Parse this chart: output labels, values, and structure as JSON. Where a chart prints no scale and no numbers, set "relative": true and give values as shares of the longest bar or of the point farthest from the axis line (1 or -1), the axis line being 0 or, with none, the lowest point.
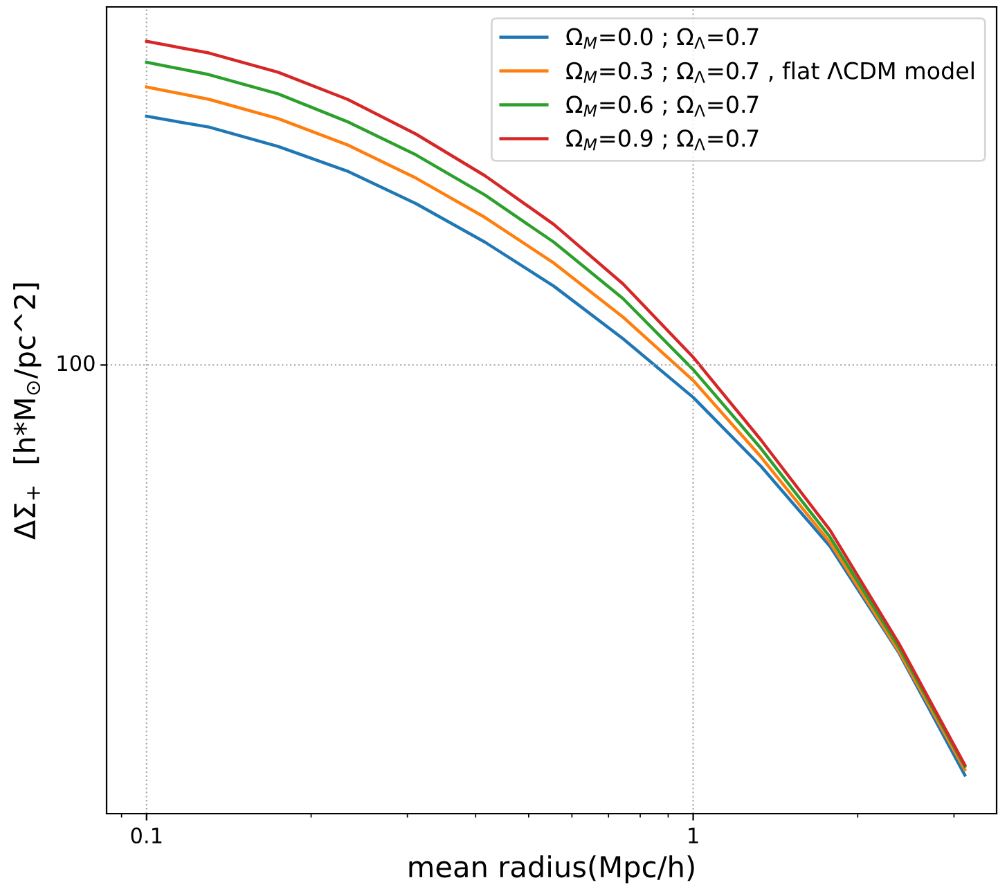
{
  "chart_data": {
    "type": "line",
    "xlabel": "mean radius(Mpc/h)",
    "ylabel": "ΔΣ$_{+}$  [h*M$_{⊙}$/pc^2]",
    "log": "x",
    "relative": true,
    "grid": "x",
    "legend": "top right",
    "marker": "none",
    "line_style": "solid",
    "tick_labels": "x",
    "xlim": [
      0.0845,
      3.59
    ],
    "xticks": [
      {
        "value": 0.09,
        "label": null
      },
      0.1,
      {
        "value": 0.2,
        "label": null
      },
      {
        "value": 0.3,
        "label": null
      },
      {
        "value": 0.4,
        "label": null
      },
      {
        "value": 0.5,
        "label": null
      },
      {
        "value": 0.6,
        "label": null
      },
      {
        "value": 0.7,
        "label": null
      },
      {
        "value": 0.8,
        "label": null
      },
      {
        "value": 0.9,
        "label": null
      },
      1,
      {
        "value": 2,
        "label": null
      },
      {
        "value": 3,
        "label": null
      }
    ],
    "ref_lines": [
      {
        "axis": "y",
        "value": 0.581,
        "color": "#aaaaaa",
        "line_style": "dotted"
      }
    ],
    "annotations": [
      "100"
    ],
    "x": [
      0.1,
      0.13,
      0.174,
      0.233,
      0.311,
      0.416,
      0.556,
      0.744,
      1.0,
      1.33,
      1.78,
      2.38,
      3.14
    ],
    "series": [
      {
        "name": "Ω$_{M}$=0.0 ; Ω$_{Λ}$=0.7",
        "color": "#1f77b4",
        "values": [
          0.903,
          0.889,
          0.864,
          0.832,
          0.79,
          0.74,
          0.683,
          0.615,
          0.539,
          0.45,
          0.346,
          0.208,
          0.05
        ]
      },
      {
        "name": "Ω$_{M}$=0.3 ; Ω$_{Λ}$=0.7 , flat ΛCDM model",
        "color": "#ff7f0e",
        "values": [
          0.941,
          0.925,
          0.9,
          0.866,
          0.823,
          0.772,
          0.713,
          0.643,
          0.561,
          0.462,
          0.351,
          0.21,
          0.057
        ]
      },
      {
        "name": "Ω$_{M}$=0.6 ; Ω$_{Λ}$=0.7",
        "color": "#2ca02c",
        "values": [
          0.973,
          0.957,
          0.932,
          0.896,
          0.853,
          0.801,
          0.74,
          0.667,
          0.575,
          0.473,
          0.358,
          0.215,
          0.061
        ]
      },
      {
        "name": "Ω$_{M}$=0.9 ; Ω$_{Λ}$=0.7",
        "color": "#d62728",
        "values": [
          1,
          0.985,
          0.96,
          0.925,
          0.88,
          0.826,
          0.763,
          0.686,
          0.591,
          0.484,
          0.367,
          0.22,
          0.063
        ]
      }
    ]
  }
}
